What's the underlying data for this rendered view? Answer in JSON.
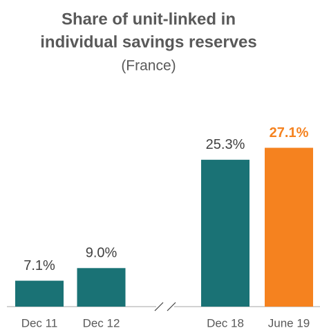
{
  "chart_data": {
    "type": "bar",
    "title": [
      "Share of unit-linked in",
      "individual savings reserves"
    ],
    "subtitle": "(France)",
    "categories": [
      "Dec 11",
      "Dec 12",
      "Dec 18",
      "June 19"
    ],
    "values": [
      7.1,
      9.0,
      25.3,
      27.1
    ],
    "value_labels": [
      "7.1%",
      "9.0%",
      "25.3%",
      "27.1%"
    ],
    "colors": [
      "#1a7275",
      "#1a7275",
      "#1a7275",
      "#f5821f"
    ],
    "value_label_colors": [
      "#404040",
      "#404040",
      "#404040",
      "#f5821f"
    ],
    "ylim": [
      3.2,
      28.3
    ]
  }
}
